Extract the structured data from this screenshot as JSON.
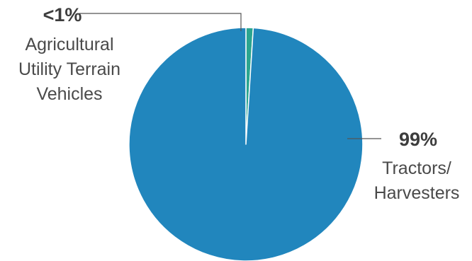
{
  "chart_data": {
    "type": "pie",
    "title": "",
    "slices": [
      {
        "label_lines": [
          "Agricultural",
          "Utility Terrain",
          "Vehicles"
        ],
        "value_label": "<1%",
        "value": 1,
        "color": "#2ba58f"
      },
      {
        "label_lines": [
          "Tractors/",
          "Harvesters"
        ],
        "value_label": "99%",
        "value": 99,
        "color": "#2186bd"
      }
    ],
    "slice_border_color": "#ffffff",
    "leader_line_color": "#555555",
    "label_color": "#4a4a4a",
    "value_label_color": "#3d3d3d"
  }
}
